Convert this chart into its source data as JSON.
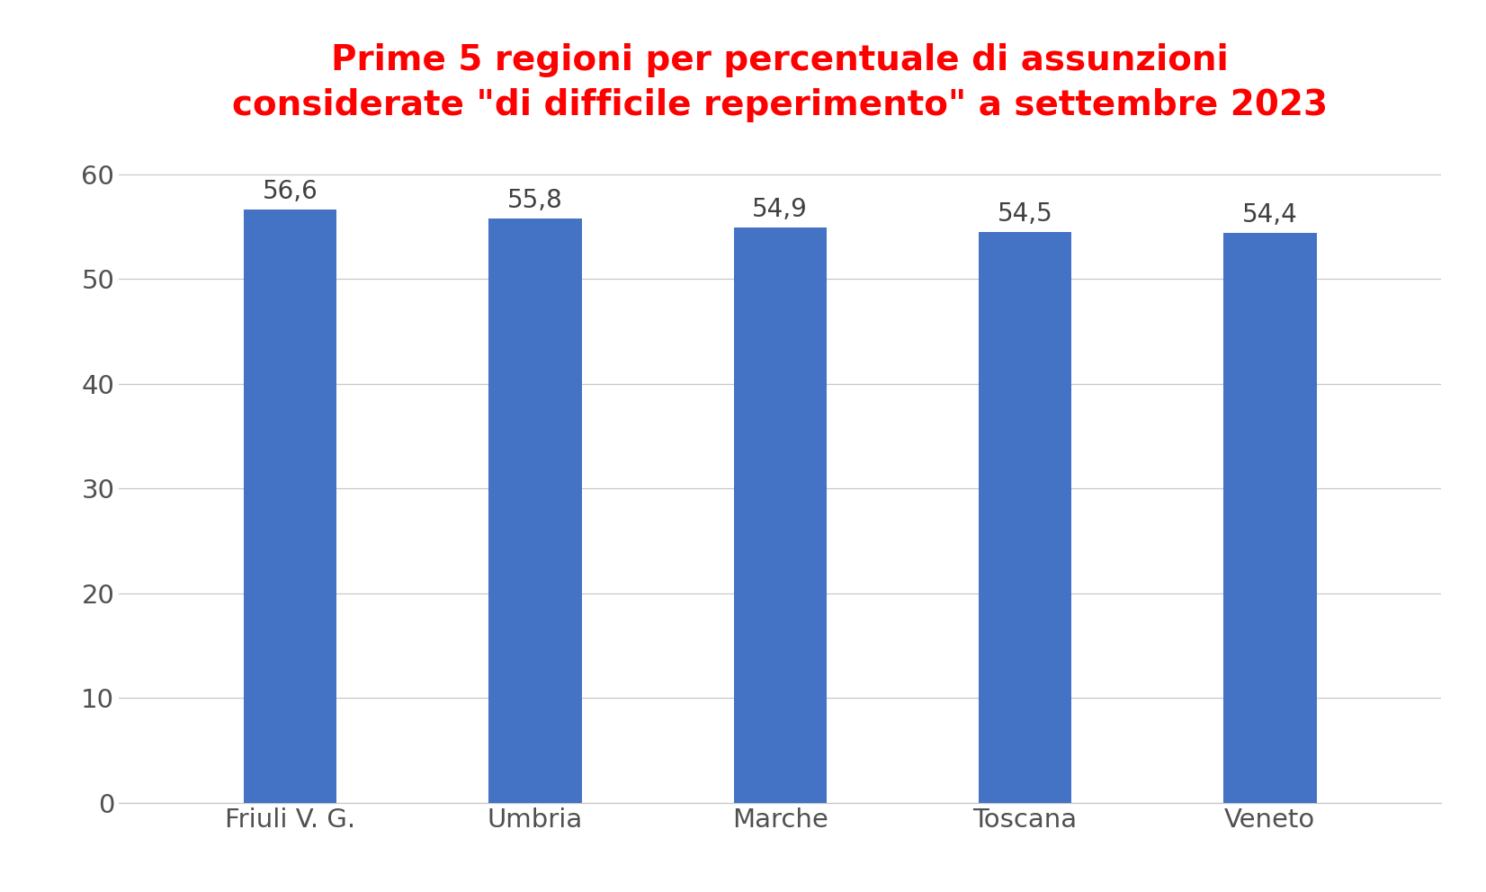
{
  "title_line1": "Prime 5 regioni per percentuale di assunzioni",
  "title_line2": "considerate \"di difficile reperimento\" a settembre 2023",
  "categories": [
    "Friuli V. G.",
    "Umbria",
    "Marche",
    "Toscana",
    "Veneto"
  ],
  "values": [
    56.6,
    55.8,
    54.9,
    54.5,
    54.4
  ],
  "bar_color": "#4472C4",
  "title_color": "#FF0000",
  "label_color": "#404040",
  "tick_color": "#505050",
  "grid_color": "#C8C8C8",
  "background_color": "#FFFFFF",
  "ylim": [
    0,
    63
  ],
  "yticks": [
    0,
    10,
    20,
    30,
    40,
    50,
    60
  ],
  "bar_width": 0.38,
  "title_fontsize": 28,
  "tick_fontsize": 21,
  "label_fontsize": 21,
  "value_fontsize": 20
}
